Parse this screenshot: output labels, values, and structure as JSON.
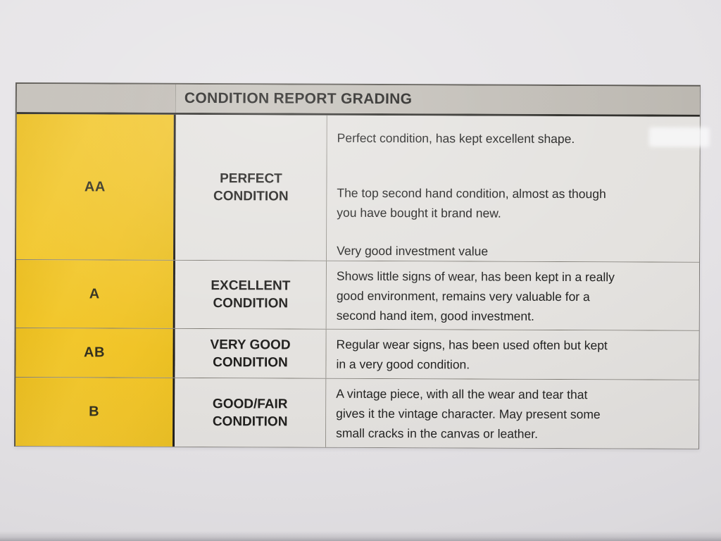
{
  "document": {
    "header": {
      "title": "CONDITION REPORT GRADING"
    },
    "rows": [
      {
        "grade": "AA",
        "condition": "PERFECT CONDITION",
        "description": [
          "Perfect condition, has kept excellent shape.",
          "The top second hand condition, almost as though\nyou have bought it brand new.",
          "Very good investment value"
        ]
      },
      {
        "grade": "A",
        "condition": "EXCELLENT CONDITION",
        "description": [
          "Shows little signs of wear, has been kept in a really\ngood environment, remains very valuable for a\nsecond hand item, good investment."
        ]
      },
      {
        "grade": "AB",
        "condition": "VERY GOOD CONDITION",
        "description": [
          "Regular wear signs, has been used often but kept\nin a very good condition."
        ]
      },
      {
        "grade": "B",
        "condition": "GOOD/FAIR CONDITION",
        "description": [
          "A vintage piece, with all the wear and tear that\ngives it the vintage character. May present some\nsmall cracks in the canvas or leather."
        ]
      }
    ],
    "colors": {
      "paper": "#E6E4E7",
      "header_bg": "#BEBAB3",
      "grade_cell_yellow": "#F1C428",
      "body_cell_bg": "#E4E2DF",
      "text": "#222221",
      "thick_divider": "#1F1D19"
    }
  }
}
